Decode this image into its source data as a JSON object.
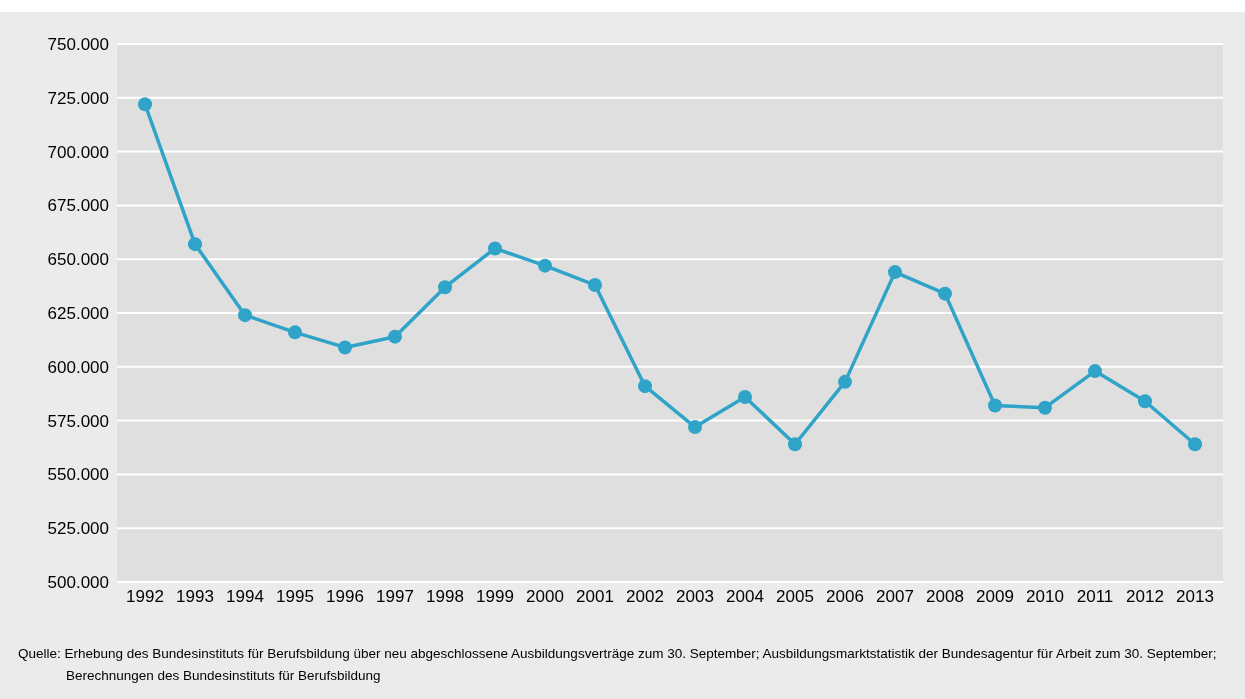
{
  "chart_data": {
    "type": "line",
    "categories": [
      "1992",
      "1993",
      "1994",
      "1995",
      "1996",
      "1997",
      "1998",
      "1999",
      "2000",
      "2001",
      "2002",
      "2003",
      "2004",
      "2005",
      "2006",
      "2007",
      "2008",
      "2009",
      "2010",
      "2011",
      "2012",
      "2013"
    ],
    "series": [
      {
        "color": "#2fa4c8",
        "values": [
          722000,
          657000,
          624000,
          616000,
          609000,
          614000,
          637000,
          655000,
          647000,
          638000,
          591000,
          572000,
          586000,
          564000,
          593000,
          644000,
          634000,
          582000,
          581000,
          598000,
          584000,
          564000
        ]
      }
    ],
    "ylim": [
      500000,
      750000
    ],
    "yticks": [
      {
        "value": 500000,
        "label": "500.000"
      },
      {
        "value": 525000,
        "label": "525.000"
      },
      {
        "value": 550000,
        "label": "550.000"
      },
      {
        "value": 575000,
        "label": "575.000"
      },
      {
        "value": 600000,
        "label": "600.000"
      },
      {
        "value": 625000,
        "label": "625.000"
      },
      {
        "value": 650000,
        "label": "650.000"
      },
      {
        "value": 675000,
        "label": "675.000"
      },
      {
        "value": 700000,
        "label": "700.000"
      },
      {
        "value": 725000,
        "label": "725.000"
      },
      {
        "value": 750000,
        "label": "750.000"
      }
    ],
    "grid": "y",
    "marker": "circle",
    "line_style": "solid",
    "legend": false,
    "annotations": [
      "Quelle: Erhebung des Bundesinstituts für Berufsbildung über neu abgeschlossene Ausbildungsverträge zum 30. September; Ausbildungsmarktstatistik der Bundesagentur für Arbeit zum 30. September; Berechnungen des Bundesinstituts für Berufsbildung"
    ]
  }
}
